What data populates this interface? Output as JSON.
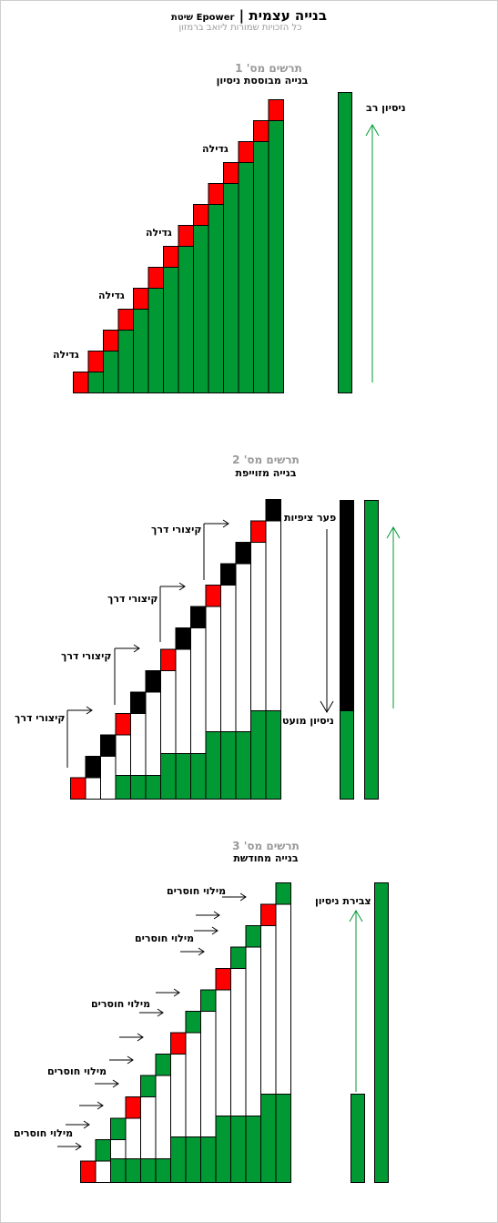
{
  "header": {
    "title": "בנייה עצמית",
    "separator": "|",
    "subtitle": "שיטת Epower",
    "credit": "כל הזכויות שמורות ליואב ברמזון"
  },
  "colors": {
    "green": "#009933",
    "red": "#ff0000",
    "black": "#000000",
    "white": "#ffffff",
    "gray": "#999999"
  },
  "diagram1": {
    "title": "תרשים מס' 1",
    "subtitle": "בנייה מבוססת ניסיון",
    "growth_labels": [
      "גדילה",
      "גדילה",
      "גדילה",
      "גדילה"
    ],
    "side_label": "ניסיון רב"
  },
  "diagram2": {
    "title": "תרשים מס' 2",
    "subtitle": "בנייה מזוייפת",
    "shortcut_labels": [
      "קיצורי דרך",
      "קיצורי דרך",
      "קיצורי דרך",
      "קיצורי דרך"
    ],
    "gap_label": "פער ציפיות",
    "low_label": "ניסיון מועט"
  },
  "diagram3": {
    "title": "תרשים מס' 3",
    "subtitle": "בנייה מחודשת",
    "fill_labels": [
      "מילוי חוסרים",
      "מילוי חוסרים",
      "מילוי חוסרים",
      "מילוי חוסרים",
      "מילוי חוסרים"
    ],
    "side_label": "צבירת ניסיון"
  }
}
